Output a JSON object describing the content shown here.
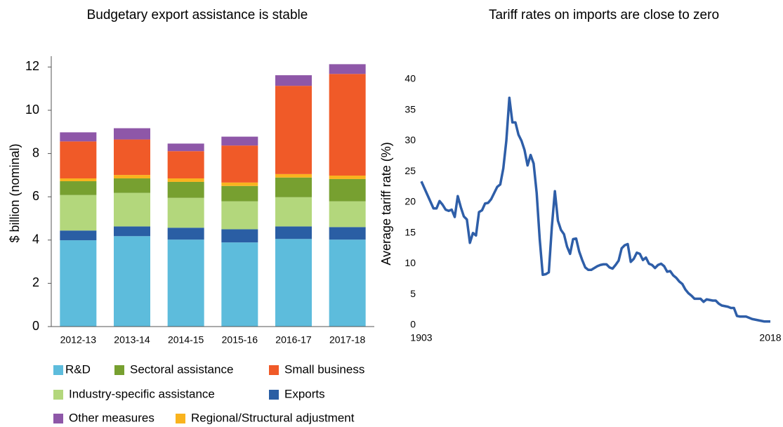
{
  "chart_data": [
    {
      "type": "stacked_bar",
      "title": "Budgetary export assistance is stable",
      "y_label": "$ billion (nominal)",
      "categories": [
        "2012-13",
        "2013-14",
        "2014-15",
        "2015-16",
        "2016-17",
        "2017-18"
      ],
      "series": [
        {
          "name": "R&D",
          "color": "#5dbcdc",
          "values": [
            3.99,
            4.18,
            4.02,
            3.89,
            4.05,
            4.02
          ]
        },
        {
          "name": "Exports",
          "color": "#2a5ea4",
          "values": [
            0.45,
            0.45,
            0.55,
            0.61,
            0.58,
            0.58
          ]
        },
        {
          "name": "Industry-specific assistance",
          "color": "#b3d77c",
          "values": [
            1.64,
            1.55,
            1.38,
            1.29,
            1.35,
            1.19
          ]
        },
        {
          "name": "Sectoral assistance",
          "color": "#77a030",
          "values": [
            0.64,
            0.67,
            0.74,
            0.71,
            0.91,
            1.03
          ]
        },
        {
          "name": "Regional/Structural adjustment",
          "color": "#f9b31e",
          "values": [
            0.13,
            0.16,
            0.16,
            0.16,
            0.16,
            0.16
          ]
        },
        {
          "name": "Small business",
          "color": "#f05a28",
          "values": [
            1.71,
            1.64,
            1.26,
            1.71,
            4.08,
            4.7
          ]
        },
        {
          "name": "Other measures",
          "color": "#8e57a8",
          "values": [
            0.42,
            0.52,
            0.35,
            0.41,
            0.49,
            0.45
          ]
        }
      ],
      "ylim": [
        0,
        12.5
      ],
      "yticks": [
        0,
        2,
        4,
        6,
        8,
        10,
        12
      ],
      "grid": false
    },
    {
      "type": "line",
      "title": "Tariff rates on imports are close to zero",
      "y_label": "Average tariff rate (%)",
      "x": [
        1903,
        1905,
        1907,
        1908,
        1909,
        1910,
        1911,
        1912,
        1913,
        1914,
        1915,
        1916,
        1917,
        1918,
        1919,
        1920,
        1921,
        1922,
        1923,
        1924,
        1925,
        1926,
        1927,
        1928,
        1929,
        1930,
        1931,
        1932,
        1933,
        1934,
        1935,
        1936,
        1937,
        1938,
        1939,
        1940,
        1941,
        1942,
        1943,
        1944,
        1945,
        1946,
        1947,
        1948,
        1949,
        1950,
        1951,
        1952,
        1953,
        1954,
        1955,
        1956,
        1957,
        1958,
        1959,
        1960,
        1961,
        1962,
        1963,
        1964,
        1965,
        1966,
        1967,
        1968,
        1969,
        1970,
        1971,
        1972,
        1973,
        1974,
        1975,
        1976,
        1977,
        1978,
        1979,
        1980,
        1981,
        1982,
        1983,
        1984,
        1985,
        1986,
        1987,
        1988,
        1989,
        1990,
        1991,
        1992,
        1993,
        1994,
        1995,
        1996,
        1997,
        1998,
        1999,
        2000,
        2001,
        2002,
        2003,
        2004,
        2005,
        2006,
        2007,
        2008,
        2009,
        2010,
        2011,
        2012,
        2013,
        2014,
        2015,
        2016,
        2017,
        2018
      ],
      "series": [
        {
          "name": "Average tariff rate",
          "color": "#2e5ea8",
          "values": [
            23.4,
            21.2,
            19.0,
            19.0,
            20.2,
            19.6,
            18.8,
            18.6,
            18.8,
            17.6,
            21.0,
            19.2,
            17.7,
            17.2,
            13.4,
            15.0,
            14.6,
            18.4,
            18.7,
            19.8,
            19.9,
            20.5,
            21.5,
            22.5,
            22.9,
            25.5,
            30.0,
            37.0,
            33.0,
            33.0,
            31.0,
            30.0,
            28.5,
            26.0,
            27.7,
            26.3,
            21.5,
            14.0,
            8.2,
            8.3,
            8.6,
            16.0,
            21.8,
            17.0,
            15.5,
            14.8,
            12.8,
            11.6,
            14.0,
            14.1,
            12.0,
            10.6,
            9.4,
            9.0,
            9.0,
            9.3,
            9.6,
            9.8,
            9.9,
            9.9,
            9.4,
            9.2,
            9.8,
            10.5,
            12.5,
            13.0,
            13.2,
            10.3,
            10.8,
            11.8,
            11.6,
            10.6,
            11.0,
            10.0,
            9.8,
            9.3,
            9.8,
            10.0,
            9.6,
            8.7,
            8.8,
            8.1,
            7.7,
            7.1,
            6.7,
            5.8,
            5.2,
            4.8,
            4.3,
            4.3,
            4.3,
            3.8,
            4.2,
            4.1,
            4.0,
            4.0,
            3.5,
            3.2,
            3.1,
            3.0,
            2.8,
            2.8,
            1.5,
            1.4,
            1.4,
            1.4,
            1.2,
            1.0,
            0.9,
            0.8,
            0.7,
            0.6,
            0.6,
            0.6
          ]
        }
      ],
      "xlim": [
        1903,
        2018
      ],
      "xticks": [
        1903,
        2018
      ],
      "ylim": [
        0,
        40
      ],
      "yticks": [
        0,
        5,
        10,
        15,
        20,
        25,
        30,
        35,
        40
      ],
      "grid": false
    }
  ]
}
